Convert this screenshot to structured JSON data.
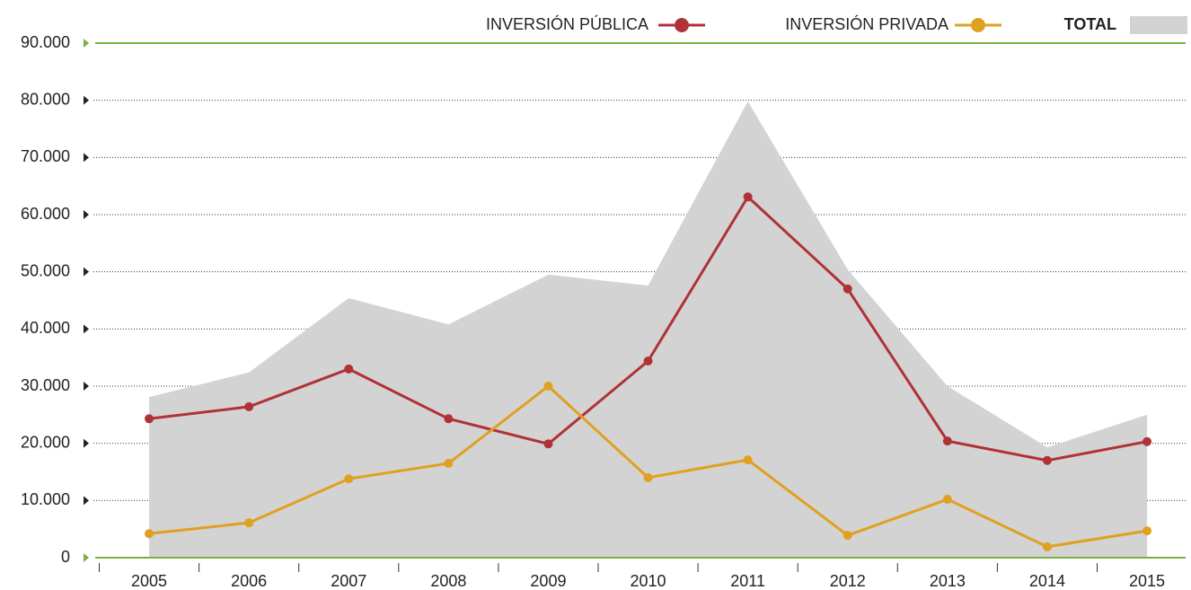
{
  "chart_data": {
    "type": "line",
    "categories": [
      "2005",
      "2006",
      "2007",
      "2008",
      "2009",
      "2010",
      "2011",
      "2012",
      "2013",
      "2014",
      "2015"
    ],
    "series": [
      {
        "name": "INVERSIÓN PÚBLICA",
        "color": "#b03236",
        "style": "line",
        "values": [
          24300,
          26400,
          33000,
          24300,
          19900,
          34400,
          63100,
          47000,
          20400,
          17000,
          20300
        ]
      },
      {
        "name": "INVERSIÓN PRIVADA",
        "color": "#e0a020",
        "style": "line",
        "values": [
          4200,
          6100,
          13800,
          16500,
          30000,
          14000,
          17100,
          3900,
          10200,
          1900,
          4700
        ]
      },
      {
        "name": "TOTAL",
        "color": "#d3d3d3",
        "style": "area",
        "values": [
          28100,
          32400,
          45400,
          40800,
          49500,
          47600,
          79800,
          50400,
          30000,
          19300,
          25000
        ]
      }
    ],
    "ylim": [
      0,
      90000
    ],
    "yticks": [
      0,
      {
        "value": 10000,
        "label": "10.000"
      },
      {
        "value": 20000,
        "label": "20.000"
      },
      {
        "value": 30000,
        "label": "30.000"
      },
      {
        "value": 40000,
        "label": "40.000"
      },
      {
        "value": 50000,
        "label": "50.000"
      },
      {
        "value": 60000,
        "label": "60.000"
      },
      {
        "value": 70000,
        "label": "70.000"
      },
      {
        "value": 80000,
        "label": "80.000"
      },
      {
        "value": 90000,
        "label": "90.000"
      }
    ],
    "grid": true,
    "legend": "top-right"
  }
}
